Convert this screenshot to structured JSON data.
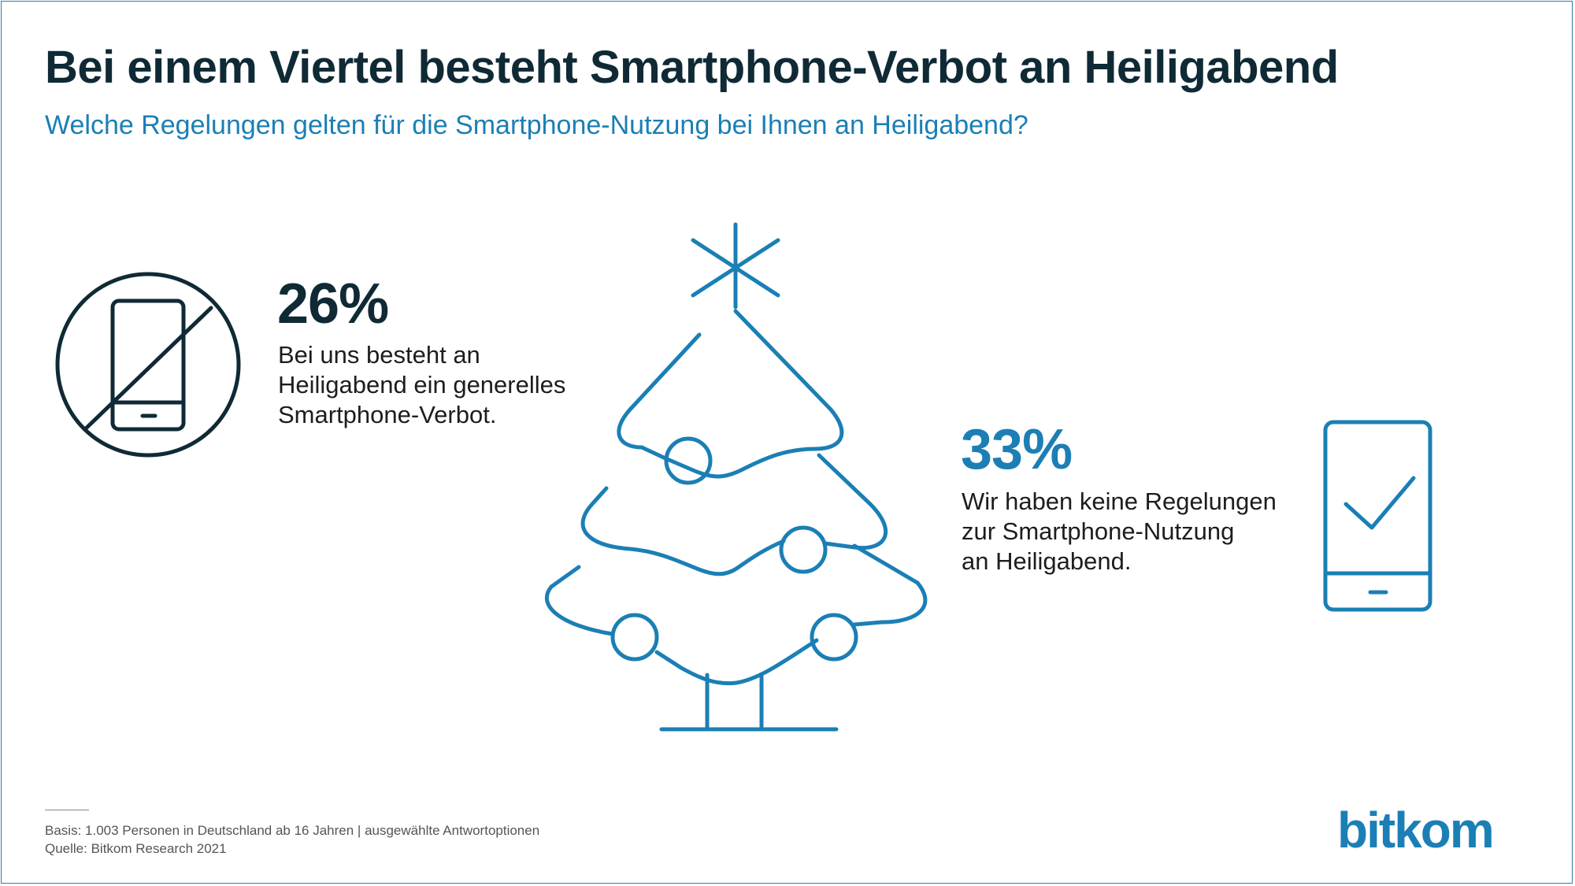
{
  "title": "Bei einem Viertel besteht Smartphone-Verbot an Heiligabend",
  "subtitle": "Welche Regelungen gelten für die Smartphone-Nutzung bei Ihnen an Heiligabend?",
  "chart_data": {
    "type": "table",
    "categories": [
      "Bei uns besteht an Heiligabend ein generelles Smartphone-Verbot.",
      "Wir haben keine Regelungen zur Smartphone-Nutzung an Heiligabend."
    ],
    "values": [
      26,
      33
    ],
    "unit": "%"
  },
  "stats": {
    "ban": {
      "value": "26%",
      "lines": [
        "Bei uns besteht an",
        "Heiligabend ein generelles",
        "Smartphone-Verbot."
      ]
    },
    "none": {
      "value": "33%",
      "lines": [
        "Wir haben keine Regelungen",
        "zur Smartphone-Nutzung",
        "an Heiligabend."
      ]
    }
  },
  "footer": {
    "basis": "Basis: 1.003 Personen in Deutschland ab 16 Jahren | ausgewählte Antwortoptionen",
    "source": "Quelle: Bitkom Research 2021"
  },
  "logo": "bitkom",
  "colors": {
    "dark": "#0f2a35",
    "accent": "#1b7fb5"
  },
  "icons": [
    "no-smartphone-icon",
    "christmas-tree-icon",
    "smartphone-check-icon"
  ]
}
